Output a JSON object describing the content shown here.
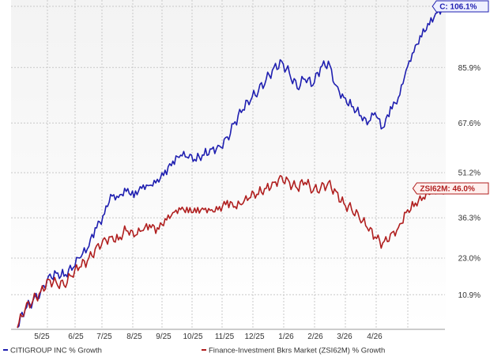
{
  "chart_data": {
    "type": "line",
    "title": "",
    "xlabel": "",
    "ylabel": "",
    "x_tick_labels": [
      "5/25",
      "6/25",
      "7/25",
      "8/25",
      "9/25",
      "10/25",
      "11/25",
      "12/25",
      "1/26",
      "2/26",
      "3/26",
      "4/26"
    ],
    "y_tick_labels": [
      "106.1%",
      "85.9%",
      "67.6%",
      "51.2%",
      "36.3%",
      "23.0%",
      "10.9%"
    ],
    "y_ticks": [
      106.1,
      85.9,
      67.6,
      51.2,
      36.3,
      23.0,
      10.9
    ],
    "ylim": [
      0,
      106.1
    ],
    "grid": true,
    "legend_position": "bottom",
    "series": [
      {
        "name": "CITIGROUP INC % Growth",
        "color": "#1f1fb0",
        "callout": "C: 106.1%",
        "points": [
          [
            0,
            0
          ],
          [
            1,
            6
          ],
          [
            2,
            9
          ],
          [
            3,
            12
          ],
          [
            4,
            17
          ],
          [
            5,
            18
          ],
          [
            6,
            17
          ],
          [
            7,
            19
          ],
          [
            8,
            23
          ],
          [
            9,
            26
          ],
          [
            10,
            33
          ],
          [
            11,
            37
          ],
          [
            12,
            44
          ],
          [
            13,
            43
          ],
          [
            14,
            45
          ],
          [
            15,
            43
          ],
          [
            16,
            46
          ],
          [
            17,
            47
          ],
          [
            18,
            49
          ],
          [
            19,
            52
          ],
          [
            20,
            55
          ],
          [
            21,
            57
          ],
          [
            22,
            56
          ],
          [
            23,
            55
          ],
          [
            24,
            57
          ],
          [
            25,
            59
          ],
          [
            26,
            60
          ],
          [
            27,
            63
          ],
          [
            28,
            68
          ],
          [
            29,
            72
          ],
          [
            30,
            75
          ],
          [
            31,
            78
          ],
          [
            32,
            82
          ],
          [
            33,
            86
          ],
          [
            34,
            88
          ],
          [
            35,
            84
          ],
          [
            36,
            79
          ],
          [
            37,
            82
          ],
          [
            38,
            80
          ],
          [
            39,
            86
          ],
          [
            40,
            88
          ],
          [
            41,
            80
          ],
          [
            42,
            76
          ],
          [
            43,
            73
          ],
          [
            44,
            70
          ],
          [
            45,
            67
          ],
          [
            46,
            71
          ],
          [
            47,
            66
          ],
          [
            48,
            73
          ],
          [
            49,
            76
          ],
          [
            50,
            85
          ],
          [
            51,
            91
          ],
          [
            52,
            96
          ],
          [
            53,
            100
          ],
          [
            54,
            104
          ],
          [
            55,
            106.1
          ]
        ]
      },
      {
        "name": "Finance-Investment Bkrs Market (ZSI62M) % Growth",
        "color": "#b01f1f",
        "callout": "ZSI62M: 46.0%",
        "points": [
          [
            0,
            0
          ],
          [
            1,
            6
          ],
          [
            2,
            9
          ],
          [
            3,
            12
          ],
          [
            4,
            16
          ],
          [
            5,
            15
          ],
          [
            6,
            14
          ],
          [
            7,
            17
          ],
          [
            8,
            20
          ],
          [
            9,
            22
          ],
          [
            10,
            26
          ],
          [
            11,
            29
          ],
          [
            12,
            30
          ],
          [
            13,
            29
          ],
          [
            14,
            32
          ],
          [
            15,
            30
          ],
          [
            16,
            32
          ],
          [
            17,
            34
          ],
          [
            18,
            33
          ],
          [
            19,
            36
          ],
          [
            20,
            38
          ],
          [
            21,
            39
          ],
          [
            22,
            38
          ],
          [
            23,
            38
          ],
          [
            24,
            39
          ],
          [
            25,
            39
          ],
          [
            26,
            40
          ],
          [
            27,
            42
          ],
          [
            28,
            40
          ],
          [
            29,
            41
          ],
          [
            30,
            43
          ],
          [
            31,
            44
          ],
          [
            32,
            46
          ],
          [
            33,
            48
          ],
          [
            34,
            50
          ],
          [
            35,
            48
          ],
          [
            36,
            46
          ],
          [
            37,
            48
          ],
          [
            38,
            45
          ],
          [
            39,
            46
          ],
          [
            40,
            48
          ],
          [
            41,
            45
          ],
          [
            42,
            41
          ],
          [
            43,
            39
          ],
          [
            44,
            36
          ],
          [
            45,
            33
          ],
          [
            46,
            30
          ],
          [
            47,
            28
          ],
          [
            48,
            31
          ],
          [
            49,
            33
          ],
          [
            50,
            38
          ],
          [
            51,
            40
          ],
          [
            52,
            42
          ],
          [
            53,
            44
          ],
          [
            54,
            45
          ],
          [
            55,
            46.0
          ]
        ]
      }
    ]
  }
}
